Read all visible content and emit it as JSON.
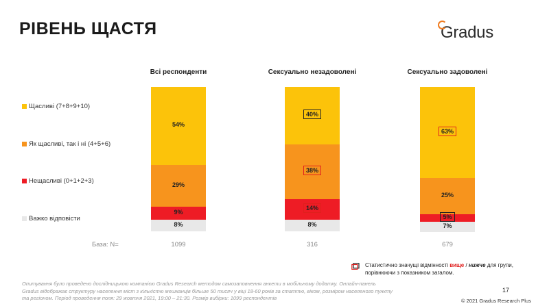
{
  "title": "РІВЕНЬ ЩАСТЯ",
  "logo_text": "Gradus",
  "chart_data": {
    "type": "bar",
    "stacked": true,
    "categories": [
      "Всі респонденти",
      "Сексуально незадоволені",
      "Сексуально задоволені"
    ],
    "series": [
      {
        "name": "Щасливі (7+8+9+10)",
        "color": "#fcc30a",
        "values": [
          54,
          40,
          63
        ],
        "labels": [
          "54%",
          "40%",
          "63%"
        ]
      },
      {
        "name": "Як щасливі, так і ні (4+5+6)",
        "color": "#f7941d",
        "values": [
          29,
          38,
          25
        ],
        "labels": [
          "29%",
          "38%",
          "25%"
        ]
      },
      {
        "name": "Нещасливі (0+1+2+3)",
        "color": "#ee1c25",
        "values": [
          9,
          14,
          5
        ],
        "labels": [
          "9%",
          "14%",
          "5%"
        ]
      },
      {
        "name": "Важко відповісти",
        "color": "#e8e8e8",
        "values": [
          8,
          8,
          7
        ],
        "labels": [
          "8%",
          "8%",
          "7%"
        ]
      }
    ],
    "highlight": [
      [
        null,
        null,
        null,
        null
      ],
      [
        "black",
        "red",
        "red",
        null
      ],
      [
        "red",
        null,
        "black",
        null
      ]
    ],
    "base_label": "База: N=",
    "base_values": [
      "1099",
      "316",
      "679"
    ]
  },
  "note": {
    "text_before": "Статистично значущі відмінності ",
    "higher": "вище",
    "separator": " / ",
    "lower": "нижче",
    "text_after": " для групи, порівнюючи з показником загалом."
  },
  "footer": "Опитування було проведено дослідницькою компанією Gradus Research методом самозаповнення анкети в мобільному додатку. Онлайн-панель Gradus відображає структуру населення міст з кількістю мешканців більше 50 тисяч у віці 18-60 років за статтю, віком, розміром населеного пункту та регіоном. Період проведення поля: 29 жовтня 2021, 19:00 – 21:30. Розмір вибірки: 1099 респондентів",
  "page_number": "17",
  "copyright": "© 2021 Gradus Research Plus"
}
